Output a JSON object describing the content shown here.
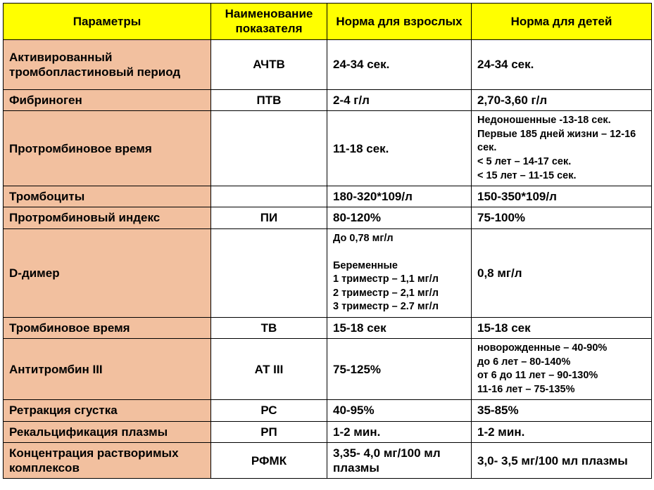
{
  "colors": {
    "header_bg": "#ffff00",
    "param_bg": "#f2c09f",
    "norm_bg": "#ffffff",
    "border": "#000000"
  },
  "headers": {
    "parameters": "Параметры",
    "indicator": "Наименование показателя",
    "adult_norm": "Норма для взрослых",
    "child_norm": "Норма для детей"
  },
  "rows": [
    {
      "param": "Активированный тромбопластиновый период",
      "indicator": "АЧТВ",
      "adult": "24-34 сек.",
      "child": "24-34 сек.",
      "pad": true
    },
    {
      "param": "Фибриноген",
      "indicator": "ПТВ",
      "adult": "2-4 г/л",
      "child": "2,70-3,60 г/л"
    },
    {
      "param": "Протромбиновое время",
      "indicator": "",
      "adult": "11-18 сек.",
      "child": "Недоношенные -13-18 сек.\nПервые 185 дней жизни – 12-16 сек.\n< 5 лет – 14-17 сек.\n< 15 лет – 11-15 сек.",
      "child_small": true
    },
    {
      "param": "Тромбоциты",
      "indicator": "",
      "adult": "180-320*109/л",
      "child": "150-350*109/л"
    },
    {
      "param": "Протромбиновый индекс",
      "indicator": "ПИ",
      "adult": "80-120%",
      "child": "75-100%"
    },
    {
      "param": "D-димер",
      "indicator": "",
      "adult": "До 0,78 мг/л\n\nБеременные\n1 триместр – 1,1 мг/л\n2 триместр – 2,1 мг/л\n3 триместр – 2.7 мг/л",
      "adult_small": true,
      "child": "0,8 мг/л"
    },
    {
      "param": "Тромбиновое время",
      "indicator": "ТВ",
      "adult": "15-18 сек",
      "child": "15-18 сек"
    },
    {
      "param": "Антитромбин III",
      "indicator": "АТ III",
      "adult": "75-125%",
      "child": "новорожденные – 40-90%\nдо 6 лет – 80-140%\nот 6 до 11 лет – 90-130%\n11-16 лет – 75-135%",
      "child_small": true
    },
    {
      "param": "Ретракция сгустка",
      "indicator": "РС",
      "adult": "40-95%",
      "child": "35-85%"
    },
    {
      "param": "Рекальцификация плазмы",
      "indicator": "РП",
      "adult": "1-2 мин.",
      "child": "1-2 мин."
    },
    {
      "param": "Концентрация растворимых комплексов",
      "indicator": "РФМК",
      "adult": "3,35- 4,0 мг/100 мл плазмы",
      "child": "3,0- 3,5 мг/100 мл плазмы"
    }
  ]
}
